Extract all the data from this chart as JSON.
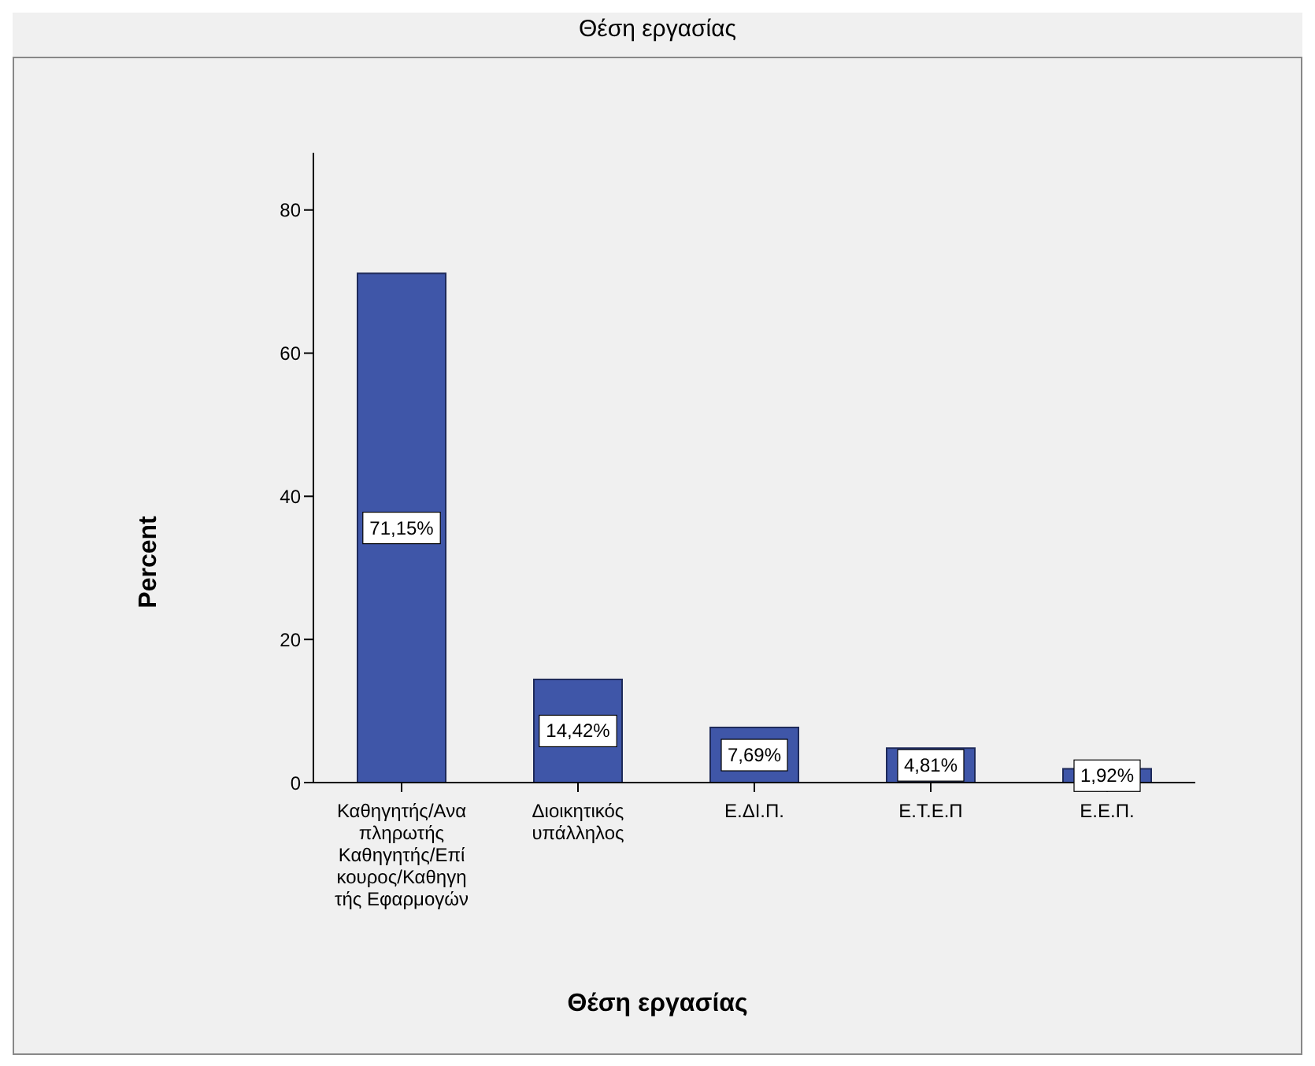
{
  "chart_data": {
    "type": "bar",
    "title": "Θέση εργασίας",
    "xlabel": "Θέση εργασίας",
    "ylabel": "Percent",
    "categories": [
      "Καθηγητής/Αναπληρωτής Καθηγητής/Επίκουρος/Καθηγητής Εφαρμογών",
      "Διοικητικός υπάλληλος",
      "Ε.ΔΙ.Π.",
      "Ε.Τ.Ε.Π",
      "Ε.Ε.Π."
    ],
    "values": [
      71.15,
      14.42,
      7.69,
      4.81,
      1.92
    ],
    "value_labels": [
      "71,15%",
      "14,42%",
      "7,69%",
      "4,81%",
      "1,92%"
    ],
    "color": "#3f56a8",
    "ylim": [
      0,
      88
    ],
    "yticks": [
      0,
      20,
      40,
      60,
      80
    ],
    "grid": false
  }
}
